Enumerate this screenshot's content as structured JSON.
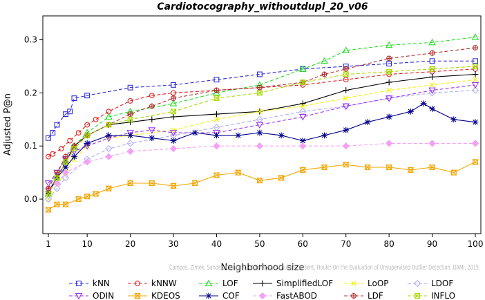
{
  "chart_data": {
    "type": "line",
    "title": "Cardiotocography_withoutdupl_20_v06",
    "xlabel": "Neighborhood size",
    "ylabel": "Adjusted P@n",
    "xlim": [
      1,
      100
    ],
    "ylim": [
      -0.065,
      0.345
    ],
    "xticks": [
      1,
      10,
      20,
      30,
      40,
      50,
      60,
      70,
      80,
      90,
      100
    ],
    "yticks": [
      0.0,
      0.1,
      0.2,
      0.3
    ],
    "ytick_labels": [
      "0.0",
      "0.1",
      "0.2",
      "0.3"
    ],
    "grid": false,
    "legend_position": "bottom",
    "credit": "Campos, Zimek, Sander, Campello, Micenková, Schubert, Assent, Houle: On the Evaluation of Unsupervised Outlier Detection. DAMI, 2015.",
    "series": [
      {
        "name": "kNN",
        "color": "#2b2bd8",
        "marker": "square",
        "dash": "5,3",
        "points": [
          [
            1,
            0.115
          ],
          [
            2,
            0.125
          ],
          [
            3,
            0.14
          ],
          [
            5,
            0.16
          ],
          [
            6,
            0.165
          ],
          [
            7,
            0.19
          ],
          [
            10,
            0.195
          ],
          [
            20,
            0.21
          ],
          [
            30,
            0.215
          ],
          [
            40,
            0.225
          ],
          [
            50,
            0.235
          ],
          [
            60,
            0.245
          ],
          [
            70,
            0.25
          ],
          [
            80,
            0.255
          ],
          [
            90,
            0.26
          ],
          [
            100,
            0.26
          ]
        ]
      },
      {
        "name": "kNNW",
        "color": "#e02020",
        "marker": "circle",
        "dash": "5,3",
        "points": [
          [
            1,
            0.08
          ],
          [
            2,
            0.085
          ],
          [
            4,
            0.095
          ],
          [
            6,
            0.11
          ],
          [
            8,
            0.125
          ],
          [
            10,
            0.14
          ],
          [
            12,
            0.15
          ],
          [
            15,
            0.165
          ],
          [
            20,
            0.185
          ],
          [
            25,
            0.195
          ],
          [
            30,
            0.2
          ],
          [
            40,
            0.205
          ],
          [
            50,
            0.21
          ],
          [
            60,
            0.215
          ],
          [
            70,
            0.225
          ],
          [
            80,
            0.235
          ],
          [
            90,
            0.24
          ],
          [
            100,
            0.245
          ]
        ]
      },
      {
        "name": "LOF",
        "color": "#22dd22",
        "marker": "triangle-up",
        "dash": "5,3",
        "points": [
          [
            1,
            0.01
          ],
          [
            3,
            0.04
          ],
          [
            5,
            0.07
          ],
          [
            7,
            0.1
          ],
          [
            10,
            0.125
          ],
          [
            15,
            0.155
          ],
          [
            20,
            0.165
          ],
          [
            30,
            0.18
          ],
          [
            40,
            0.2
          ],
          [
            50,
            0.215
          ],
          [
            60,
            0.245
          ],
          [
            65,
            0.26
          ],
          [
            70,
            0.28
          ],
          [
            80,
            0.29
          ],
          [
            90,
            0.295
          ],
          [
            100,
            0.305
          ]
        ]
      },
      {
        "name": "SimplifiedLOF",
        "color": "#000000",
        "marker": "plus",
        "dash": "none",
        "points": [
          [
            1,
            0.01
          ],
          [
            3,
            0.04
          ],
          [
            5,
            0.07
          ],
          [
            7,
            0.1
          ],
          [
            10,
            0.12
          ],
          [
            15,
            0.14
          ],
          [
            20,
            0.145
          ],
          [
            25,
            0.15
          ],
          [
            30,
            0.155
          ],
          [
            40,
            0.16
          ],
          [
            50,
            0.165
          ],
          [
            60,
            0.18
          ],
          [
            70,
            0.205
          ],
          [
            80,
            0.22
          ],
          [
            90,
            0.23
          ],
          [
            100,
            0.235
          ]
        ]
      },
      {
        "name": "LoOP",
        "color": "#f2f200",
        "marker": "x",
        "dash": "5,3",
        "points": [
          [
            1,
            0.0
          ],
          [
            3,
            0.03
          ],
          [
            5,
            0.05
          ],
          [
            7,
            0.075
          ],
          [
            10,
            0.1
          ],
          [
            15,
            0.115
          ],
          [
            20,
            0.12
          ],
          [
            30,
            0.13
          ],
          [
            40,
            0.15
          ],
          [
            50,
            0.165
          ],
          [
            60,
            0.175
          ],
          [
            70,
            0.19
          ],
          [
            80,
            0.205
          ],
          [
            90,
            0.215
          ],
          [
            100,
            0.225
          ]
        ]
      },
      {
        "name": "LDOF",
        "color": "#b0b0f0",
        "marker": "diamond",
        "dash": "5,3",
        "points": [
          [
            1,
            0.0
          ],
          [
            3,
            0.02
          ],
          [
            5,
            0.04
          ],
          [
            10,
            0.075
          ],
          [
            15,
            0.095
          ],
          [
            20,
            0.105
          ],
          [
            30,
            0.12
          ],
          [
            40,
            0.135
          ],
          [
            50,
            0.15
          ],
          [
            60,
            0.165
          ],
          [
            70,
            0.175
          ],
          [
            80,
            0.19
          ],
          [
            90,
            0.2
          ],
          [
            100,
            0.205
          ]
        ]
      },
      {
        "name": "ODIN",
        "color": "#9933ee",
        "marker": "triangle-down",
        "dash": "5,3",
        "points": [
          [
            1,
            0.03
          ],
          [
            3,
            0.05
          ],
          [
            5,
            0.075
          ],
          [
            7,
            0.09
          ],
          [
            10,
            0.1
          ],
          [
            15,
            0.115
          ],
          [
            20,
            0.125
          ],
          [
            25,
            0.13
          ],
          [
            30,
            0.125
          ],
          [
            40,
            0.125
          ],
          [
            50,
            0.14
          ],
          [
            60,
            0.155
          ],
          [
            70,
            0.175
          ],
          [
            80,
            0.19
          ],
          [
            90,
            0.205
          ],
          [
            100,
            0.215
          ]
        ]
      },
      {
        "name": "KDEOS",
        "color": "#f2a500",
        "marker": "hourglass",
        "dash": "none",
        "points": [
          [
            1,
            -0.02
          ],
          [
            3,
            -0.01
          ],
          [
            5,
            -0.01
          ],
          [
            8,
            0.0
          ],
          [
            10,
            0.005
          ],
          [
            12,
            0.01
          ],
          [
            15,
            0.02
          ],
          [
            20,
            0.03
          ],
          [
            25,
            0.03
          ],
          [
            30,
            0.025
          ],
          [
            35,
            0.03
          ],
          [
            40,
            0.045
          ],
          [
            45,
            0.05
          ],
          [
            50,
            0.035
          ],
          [
            55,
            0.04
          ],
          [
            60,
            0.055
          ],
          [
            65,
            0.06
          ],
          [
            70,
            0.065
          ],
          [
            75,
            0.06
          ],
          [
            80,
            0.06
          ],
          [
            85,
            0.055
          ],
          [
            90,
            0.06
          ],
          [
            95,
            0.05
          ],
          [
            100,
            0.07
          ]
        ]
      },
      {
        "name": "COF",
        "color": "#00008b",
        "marker": "asterisk",
        "dash": "none",
        "points": [
          [
            1,
            0.015
          ],
          [
            3,
            0.04
          ],
          [
            5,
            0.06
          ],
          [
            7,
            0.08
          ],
          [
            10,
            0.105
          ],
          [
            15,
            0.12
          ],
          [
            20,
            0.12
          ],
          [
            25,
            0.115
          ],
          [
            30,
            0.11
          ],
          [
            35,
            0.125
          ],
          [
            40,
            0.12
          ],
          [
            45,
            0.12
          ],
          [
            50,
            0.125
          ],
          [
            55,
            0.12
          ],
          [
            60,
            0.11
          ],
          [
            65,
            0.12
          ],
          [
            70,
            0.13
          ],
          [
            75,
            0.145
          ],
          [
            80,
            0.155
          ],
          [
            85,
            0.165
          ],
          [
            88,
            0.18
          ],
          [
            90,
            0.17
          ],
          [
            95,
            0.15
          ],
          [
            100,
            0.145
          ]
        ]
      },
      {
        "name": "FastABOD",
        "color": "#f4a0f4",
        "marker": "diamond-filled",
        "dash": "5,3",
        "points": [
          [
            1,
            0.02
          ],
          [
            3,
            0.03
          ],
          [
            5,
            0.05
          ],
          [
            10,
            0.07
          ],
          [
            15,
            0.08
          ],
          [
            20,
            0.09
          ],
          [
            30,
            0.095
          ],
          [
            40,
            0.1
          ],
          [
            50,
            0.1
          ],
          [
            60,
            0.1
          ],
          [
            70,
            0.1
          ],
          [
            80,
            0.105
          ],
          [
            90,
            0.105
          ],
          [
            100,
            0.105
          ]
        ]
      },
      {
        "name": "LDF",
        "color": "#b03030",
        "marker": "circle-plus",
        "dash": "5,3",
        "points": [
          [
            1,
            0.02
          ],
          [
            3,
            0.05
          ],
          [
            5,
            0.08
          ],
          [
            7,
            0.1
          ],
          [
            10,
            0.12
          ],
          [
            15,
            0.14
          ],
          [
            20,
            0.16
          ],
          [
            25,
            0.175
          ],
          [
            30,
            0.19
          ],
          [
            40,
            0.205
          ],
          [
            50,
            0.21
          ],
          [
            60,
            0.22
          ],
          [
            65,
            0.235
          ],
          [
            70,
            0.245
          ],
          [
            80,
            0.265
          ],
          [
            90,
            0.275
          ],
          [
            100,
            0.285
          ]
        ]
      },
      {
        "name": "INFLO",
        "color": "#a8d800",
        "marker": "square-x",
        "dash": "5,3",
        "points": [
          [
            1,
            0.01
          ],
          [
            3,
            0.04
          ],
          [
            5,
            0.07
          ],
          [
            7,
            0.095
          ],
          [
            10,
            0.12
          ],
          [
            15,
            0.14
          ],
          [
            20,
            0.15
          ],
          [
            30,
            0.165
          ],
          [
            40,
            0.19
          ],
          [
            50,
            0.2
          ],
          [
            60,
            0.22
          ],
          [
            70,
            0.235
          ],
          [
            80,
            0.24
          ],
          [
            90,
            0.245
          ],
          [
            100,
            0.25
          ]
        ]
      }
    ]
  }
}
